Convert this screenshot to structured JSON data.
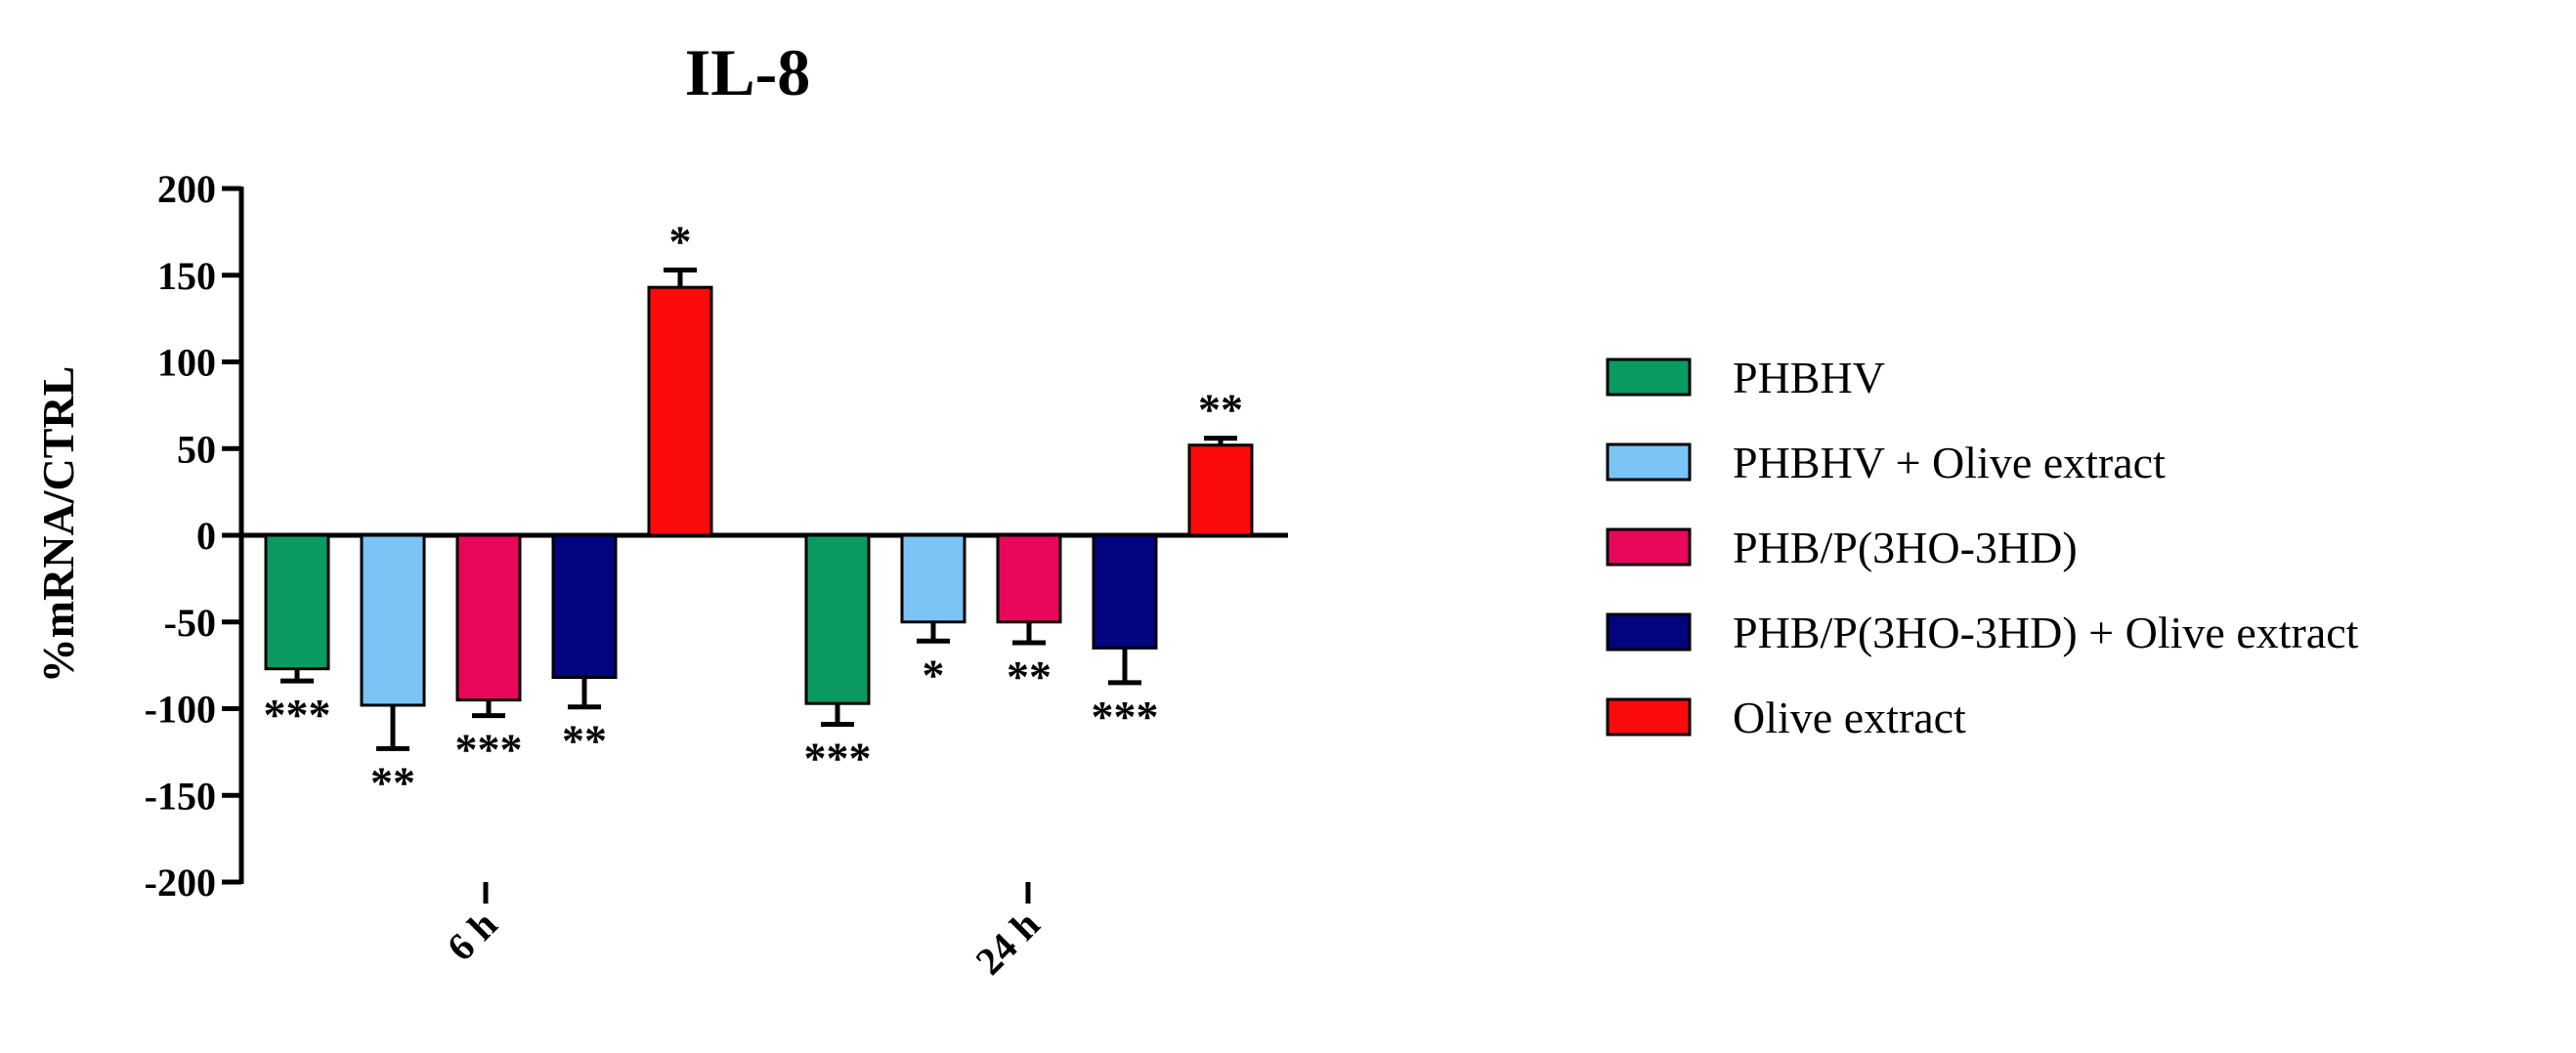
{
  "chart_data": {
    "type": "bar",
    "title": "IL-8",
    "xlabel": "",
    "ylabel": "%mRNA/CTRL",
    "ylim": [
      -200,
      200
    ],
    "yticks": [
      200,
      150,
      100,
      50,
      0,
      -50,
      -100,
      -150,
      -200
    ],
    "categories": [
      "6 h",
      "24 h"
    ],
    "legend_position": "right",
    "series": [
      {
        "name": "PHBHV",
        "color": "#0a9a61",
        "values": [
          -77,
          -97
        ],
        "errors": [
          7,
          12
        ],
        "significance": [
          "***",
          "***"
        ]
      },
      {
        "name": "PHBHV + Olive extract",
        "color": "#7cc3f5",
        "values": [
          -98,
          -50
        ],
        "errors": [
          25,
          11
        ],
        "significance": [
          "**",
          "*"
        ]
      },
      {
        "name": "PHB/P(3HO-3HD)",
        "color": "#e8075a",
        "values": [
          -95,
          -50
        ],
        "errors": [
          9,
          12
        ],
        "significance": [
          "***",
          "**"
        ]
      },
      {
        "name": "PHB/P(3HO-3HD) + Olive extract",
        "color": "#02057e",
        "values": [
          -82,
          -65
        ],
        "errors": [
          17,
          20
        ],
        "significance": [
          "**",
          "***"
        ]
      },
      {
        "name": "Olive extract",
        "color": "#fb0b0b",
        "values": [
          143,
          52
        ],
        "errors": [
          10,
          4
        ],
        "significance": [
          "*",
          "**"
        ]
      }
    ]
  }
}
